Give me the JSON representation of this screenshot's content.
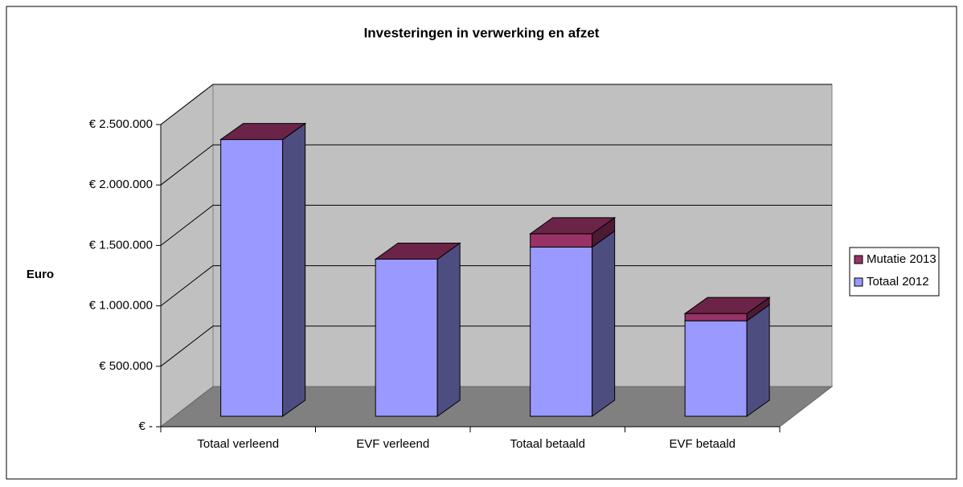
{
  "chart_data": {
    "type": "bar3d_stacked",
    "title": "Investeringen in verwerking en afzet",
    "ylabel": "Euro",
    "categories": [
      "Totaal verleend",
      "EVF verleend",
      "Totaal betaald",
      "EVF betaald"
    ],
    "series": [
      {
        "name": "Totaal 2012",
        "color": "#9999ff",
        "values": [
          2290000,
          1300000,
          1400000,
          790000
        ]
      },
      {
        "name": "Mutatie 2013",
        "color": "#993366",
        "values": [
          0,
          0,
          110000,
          60000
        ]
      }
    ],
    "ylim": [
      0,
      2500000
    ],
    "yticks": [
      {
        "value": 0,
        "label": "€ -"
      },
      {
        "value": 500000,
        "label": "€ 500.000"
      },
      {
        "value": 1000000,
        "label": "€ 1.000.000"
      },
      {
        "value": 1500000,
        "label": "€ 1.500.000"
      },
      {
        "value": 2000000,
        "label": "€ 2.000.000"
      },
      {
        "value": 2500000,
        "label": "€ 2.500.000"
      }
    ],
    "grid": true,
    "legend": "right"
  }
}
